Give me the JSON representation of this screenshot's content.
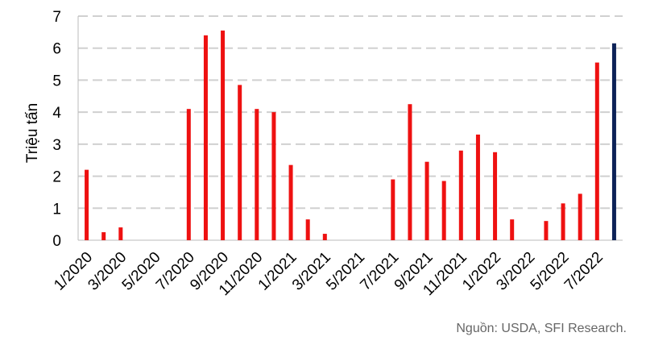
{
  "chart_data": {
    "type": "bar",
    "y_label": "Triệu tấn",
    "source": "Nguồn: USDA, SFI Research.",
    "categories": [
      "1/2020",
      null,
      "3/2020",
      null,
      "5/2020",
      null,
      "7/2020",
      null,
      "9/2020",
      null,
      "11/2020",
      null,
      "1/2021",
      null,
      "3/2021",
      null,
      "5/2021",
      null,
      "7/2021",
      null,
      "9/2021",
      null,
      "11/2021",
      null,
      "1/2022",
      null,
      "3/2022",
      null,
      "5/2022",
      null,
      "7/2022",
      null
    ],
    "values": [
      2.2,
      0.25,
      0.4,
      0,
      0,
      0,
      4.1,
      6.4,
      6.55,
      4.85,
      4.1,
      4.0,
      2.35,
      0.65,
      0.2,
      0,
      0,
      0,
      1.9,
      4.25,
      2.45,
      1.85,
      2.8,
      3.3,
      2.75,
      0.65,
      0,
      0.6,
      1.15,
      1.45,
      5.55,
      6.15
    ],
    "colors": [
      "#ee1111",
      "#ee1111",
      "#ee1111",
      "#ee1111",
      "#ee1111",
      "#ee1111",
      "#ee1111",
      "#ee1111",
      "#ee1111",
      "#ee1111",
      "#ee1111",
      "#ee1111",
      "#ee1111",
      "#ee1111",
      "#ee1111",
      "#ee1111",
      "#ee1111",
      "#ee1111",
      "#ee1111",
      "#ee1111",
      "#ee1111",
      "#ee1111",
      "#ee1111",
      "#ee1111",
      "#ee1111",
      "#ee1111",
      "#ee1111",
      "#ee1111",
      "#ee1111",
      "#ee1111",
      "#ee1111",
      "#0d2257"
    ],
    "ylim": [
      0,
      7
    ],
    "yticks": [
      0,
      1,
      2,
      3,
      4,
      5,
      6,
      7
    ],
    "grid": true
  }
}
